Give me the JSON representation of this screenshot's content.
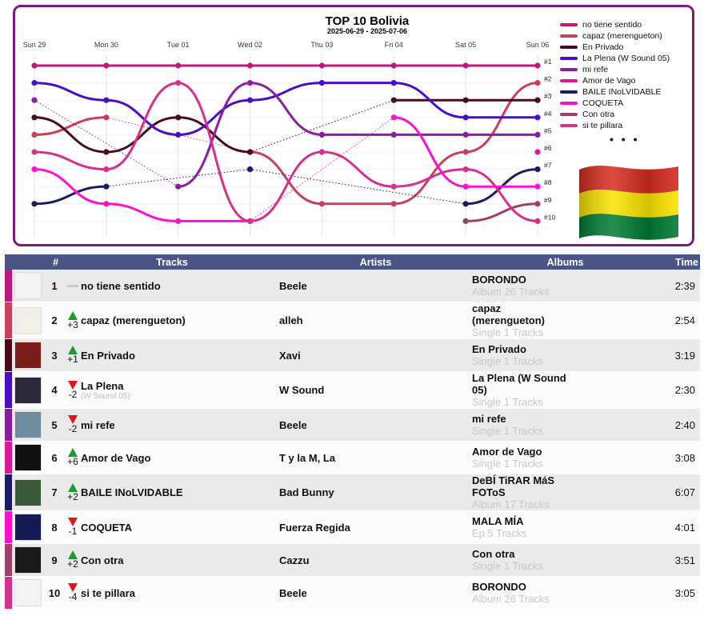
{
  "chart_data": {
    "type": "line",
    "title": "TOP 10 Bolivia",
    "subtitle": "2025-06-29 - 2025-07-06",
    "x": [
      "Sun 29",
      "Mon 30",
      "Tue 01",
      "Wed 02",
      "Thu 03",
      "Fri 04",
      "Sat 05",
      "Sun 06"
    ],
    "y_axis": "rank (1 at top, 10 at bottom)",
    "ylim": [
      1,
      10
    ],
    "rank_labels": [
      "#1",
      "#2",
      "#3",
      "#4",
      "#5",
      "#6",
      "#7",
      "#8",
      "#9",
      "#10"
    ],
    "series": [
      {
        "name": "no tiene sentido",
        "color": "#c0167e",
        "values": [
          1,
          1,
          1,
          1,
          1,
          1,
          1,
          1
        ]
      },
      {
        "name": "capaz (merengueton)",
        "color": "#c8405c",
        "values": [
          5,
          4,
          null,
          6,
          9,
          9,
          6,
          2
        ]
      },
      {
        "name": "En Privado",
        "color": "#4a0a1c",
        "values": [
          4,
          6,
          4,
          6,
          null,
          3,
          3,
          3
        ]
      },
      {
        "name": "La Plena (W Sound 05)",
        "color": "#4a0ec8",
        "values": [
          2,
          3,
          5,
          3,
          2,
          2,
          4,
          4
        ]
      },
      {
        "name": "mi refe",
        "color": "#8a1ea0",
        "values": [
          3,
          null,
          8,
          2,
          5,
          5,
          5,
          5
        ]
      },
      {
        "name": "Amor de Vago",
        "color": "#e0169a",
        "values": [
          null,
          null,
          null,
          null,
          null,
          null,
          null,
          6
        ]
      },
      {
        "name": "BAILE INoLVIDABLE",
        "color": "#1c1c66",
        "values": [
          9,
          8,
          null,
          7,
          null,
          null,
          9,
          7
        ]
      },
      {
        "name": "COQUETA",
        "color": "#ff10d0",
        "values": [
          7,
          9,
          10,
          10,
          null,
          4,
          8,
          8
        ]
      },
      {
        "name": "Con otra",
        "color": "#a0406a",
        "values": [
          null,
          null,
          null,
          null,
          null,
          null,
          10,
          9
        ]
      },
      {
        "name": "si te pillara",
        "color": "#d6308e",
        "values": [
          6,
          7,
          2,
          10,
          6,
          8,
          7,
          10
        ]
      }
    ]
  },
  "legend_more": "• • •",
  "table": {
    "headers": {
      "num": "#",
      "tracks": "Tracks",
      "artists": "Artists",
      "albums": "Albums",
      "time": "Time"
    },
    "rows": [
      {
        "bar": "#c0167e",
        "rank": "1",
        "change_dir": "same",
        "change": "",
        "title": "no tiene sentido",
        "subtitle": "",
        "artist": "Beele",
        "album": "BORONDO",
        "album_type": "Album 26 Tracks",
        "time": "2:39",
        "cover": "#f4f4f4"
      },
      {
        "bar": "#c8405c",
        "rank": "2",
        "change_dir": "up",
        "change": "+3",
        "title": "capaz (merengueton)",
        "subtitle": "",
        "artist": "alleh",
        "album": "capaz (merengueton)",
        "album_type": "Single 1 Tracks",
        "time": "2:54",
        "cover": "#f2efe8"
      },
      {
        "bar": "#4a0a1c",
        "rank": "3",
        "change_dir": "up",
        "change": "+1",
        "title": "En Privado",
        "subtitle": "",
        "artist": "Xavi",
        "album": "En Privado",
        "album_type": "Single 1 Tracks",
        "time": "3:19",
        "cover": "#7a1c18"
      },
      {
        "bar": "#4a0ec8",
        "rank": "4",
        "change_dir": "down",
        "change": "-2",
        "title": "La Plena",
        "subtitle": "(W Sound 05)",
        "artist": "W Sound",
        "album": "La Plena (W Sound 05)",
        "album_type": "Single 1 Tracks",
        "time": "2:30",
        "cover": "#2a2a3a"
      },
      {
        "bar": "#8a1ea0",
        "rank": "5",
        "change_dir": "down",
        "change": "-2",
        "title": "mi refe",
        "subtitle": "",
        "artist": "Beele",
        "album": "mi refe",
        "album_type": "Single 1 Tracks",
        "time": "2:40",
        "cover": "#6e8c9c"
      },
      {
        "bar": "#e0169a",
        "rank": "6",
        "change_dir": "up",
        "change": "+6",
        "title": "Amor de Vago",
        "subtitle": "",
        "artist": "T y la M, La",
        "album": "Amor de Vago",
        "album_type": "Single 1 Tracks",
        "time": "3:08",
        "cover": "#111111"
      },
      {
        "bar": "#1c1c66",
        "rank": "7",
        "change_dir": "up",
        "change": "+2",
        "title": "BAILE INoLVIDABLE",
        "subtitle": "",
        "artist": "Bad Bunny",
        "album": "DeBÍ TiRAR MáS FOToS",
        "album_type": "Album 17 Tracks",
        "time": "6:07",
        "cover": "#3a5a3a"
      },
      {
        "bar": "#ff10d0",
        "rank": "8",
        "change_dir": "down",
        "change": "-1",
        "title": "COQUETA",
        "subtitle": "",
        "artist": "Fuerza Regida",
        "album": "MALA MÍA",
        "album_type": "Ep 5 Tracks",
        "time": "4:01",
        "cover": "#141a55"
      },
      {
        "bar": "#a0406a",
        "rank": "9",
        "change_dir": "up",
        "change": "+2",
        "title": "Con otra",
        "subtitle": "",
        "artist": "Cazzu",
        "album": "Con otra",
        "album_type": "Single 1 Tracks",
        "time": "3:51",
        "cover": "#1a1a1a"
      },
      {
        "bar": "#d6308e",
        "rank": "10",
        "change_dir": "down",
        "change": "-4",
        "title": "si te pillara",
        "subtitle": "",
        "artist": "Beele",
        "album": "BORONDO",
        "album_type": "Album 26 Tracks",
        "time": "3:05",
        "cover": "#f4f4f4"
      }
    ]
  }
}
